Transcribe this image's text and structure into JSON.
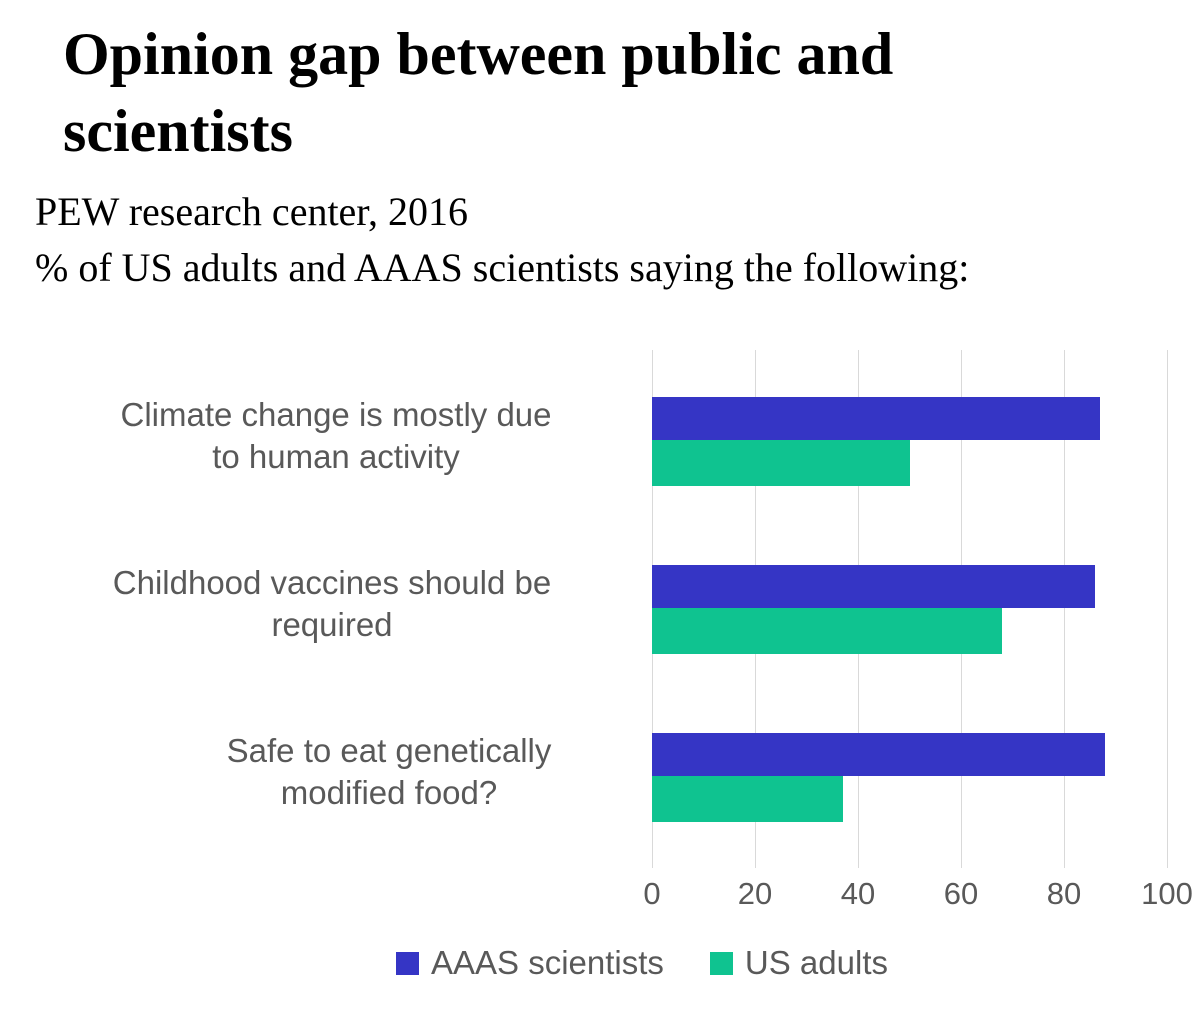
{
  "title": "Opinion gap between public and scientists",
  "subtitle_line1": "PEW research center, 2016",
  "subtitle_line2": "% of US adults and AAAS scientists saying the following:",
  "colors": {
    "scientists_blue": "#3535C5",
    "adults_green": "#0FC390",
    "gridline": "#D9D9D9",
    "chart_text_gray": "#595959"
  },
  "chart_data": {
    "type": "bar",
    "orientation": "horizontal",
    "title": "Opinion gap between public and scientists",
    "subtitle": "PEW research center, 2016 — % of US adults and AAAS scientists saying the following:",
    "categories": [
      "Climate change is mostly due to human activity",
      "Childhood vaccines should be required",
      "Safe to eat genetically modified food?"
    ],
    "category_lines": [
      [
        "Climate change is mostly due",
        "to human activity"
      ],
      [
        "Childhood vaccines should be",
        "required"
      ],
      [
        "Safe to eat genetically",
        "modified food?"
      ]
    ],
    "series": [
      {
        "name": "AAAS scientists",
        "color": "#3535C5",
        "values": [
          87,
          86,
          88
        ]
      },
      {
        "name": "US adults",
        "color": "#0FC390",
        "values": [
          50,
          68,
          37
        ]
      }
    ],
    "xlim": [
      0,
      100
    ],
    "xticks": [
      "0",
      "20",
      "40",
      "60",
      "80",
      "100"
    ],
    "grid": true,
    "legend_position": "bottom"
  }
}
